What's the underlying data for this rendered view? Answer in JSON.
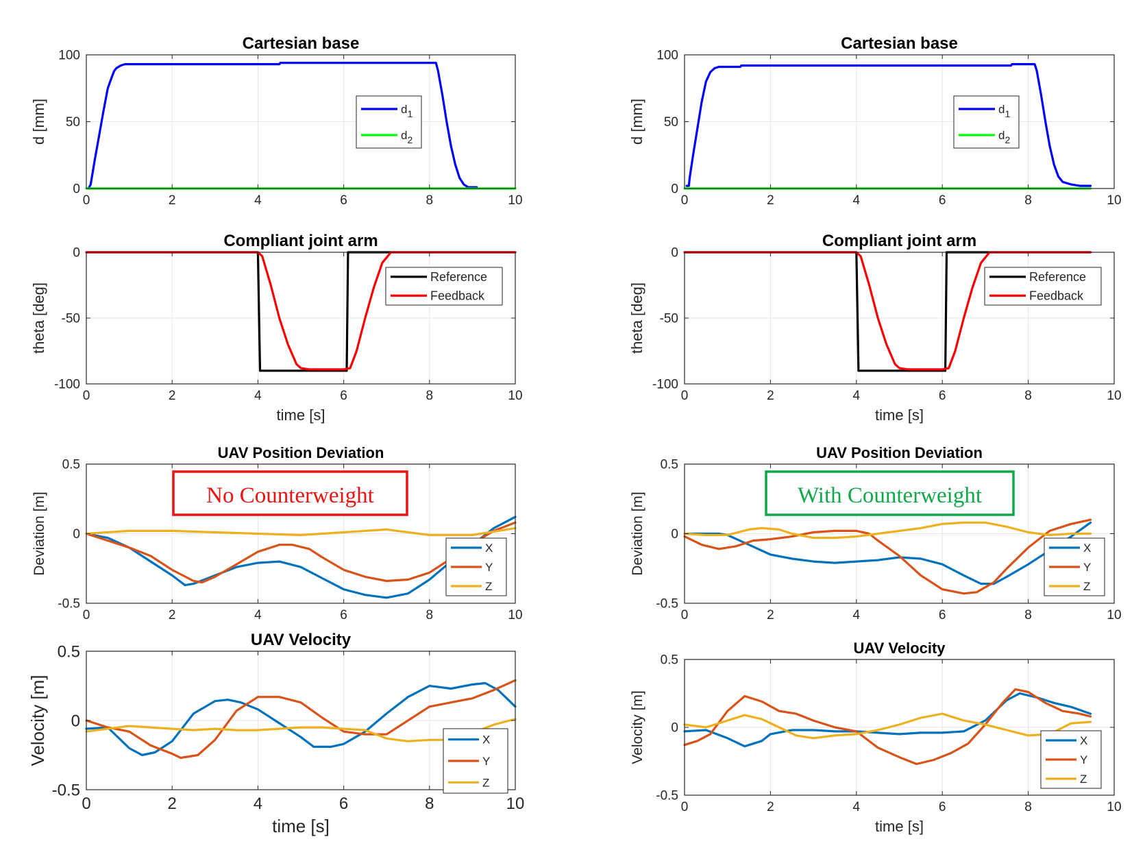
{
  "colors": {
    "blue": "#0000ff",
    "green": "#00ff00",
    "black": "#000000",
    "red": "#ff0000",
    "c1": "#0072bd",
    "c2": "#d95319",
    "c3": "#edb120",
    "grid": "#e6e6e6",
    "anno_red": "#ee1111",
    "anno_green": "#11a84a"
  },
  "annotations": {
    "no_counterweight": "No Counterweight",
    "with_counterweight": "With Counterweight"
  },
  "chart_data": [
    {
      "type": "line",
      "title": "Cartesian base",
      "xlabel": "",
      "ylabel": "d [mm]",
      "xlim": [
        0,
        10
      ],
      "ylim": [
        0,
        100
      ],
      "xticks": [
        0,
        2,
        4,
        6,
        8,
        10
      ],
      "yticks": [
        0,
        50,
        100
      ],
      "grid": true,
      "legend": "right",
      "series": [
        {
          "name": "d",
          "sub": "1",
          "color": "blue",
          "x": [
            0.05,
            0.1,
            0.2,
            0.3,
            0.4,
            0.5,
            0.6,
            0.65,
            0.7,
            0.8,
            0.9,
            1.0,
            2.0,
            3.0,
            4.0,
            4.5,
            4.52,
            6.0,
            7.0,
            8.0,
            8.15,
            8.2,
            8.3,
            8.4,
            8.5,
            8.6,
            8.7,
            8.8,
            8.9,
            9.0,
            9.1
          ],
          "y": [
            0,
            3,
            22,
            40,
            58,
            75,
            84,
            88,
            90,
            92,
            93,
            93,
            93,
            93,
            93,
            93,
            94,
            94,
            94,
            94,
            94,
            88,
            70,
            50,
            32,
            18,
            8,
            3,
            1,
            1,
            1
          ]
        },
        {
          "name": "d",
          "sub": "2",
          "color": "green",
          "x": [
            0,
            10
          ],
          "y": [
            0,
            0
          ]
        }
      ]
    },
    {
      "type": "line",
      "title": "Compliant joint arm",
      "xlabel": "time [s]",
      "ylabel": "theta [deg]",
      "xlim": [
        0,
        10
      ],
      "ylim": [
        -100,
        0
      ],
      "xticks": [
        0,
        2,
        4,
        6,
        8,
        10
      ],
      "yticks": [
        -100,
        -50,
        0
      ],
      "grid": true,
      "legend": "right",
      "series": [
        {
          "name": "Reference",
          "color": "black",
          "x": [
            0,
            4.0,
            4.05,
            6.07,
            6.1,
            10
          ],
          "y": [
            0,
            0,
            -90,
            -90,
            0,
            0
          ]
        },
        {
          "name": "Feedback",
          "color": "red",
          "x": [
            0,
            4.0,
            4.1,
            4.3,
            4.5,
            4.7,
            4.9,
            5.0,
            5.2,
            5.5,
            6.0,
            6.15,
            6.3,
            6.5,
            6.7,
            6.9,
            7.1,
            10
          ],
          "y": [
            0,
            0,
            -3,
            -25,
            -50,
            -70,
            -85,
            -88,
            -89,
            -89,
            -89,
            -88,
            -75,
            -50,
            -27,
            -8,
            0,
            0
          ]
        }
      ]
    },
    {
      "type": "line",
      "title": "Cartesian base",
      "xlabel": "",
      "ylabel": "d [mm]",
      "xlim": [
        0,
        10
      ],
      "ylim": [
        0,
        100
      ],
      "xticks": [
        0,
        2,
        4,
        6,
        8,
        10
      ],
      "yticks": [
        0,
        50,
        100
      ],
      "grid": true,
      "legend": "right",
      "series": [
        {
          "name": "d",
          "sub": "1",
          "color": "blue",
          "x": [
            0.05,
            0.1,
            0.12,
            0.2,
            0.3,
            0.4,
            0.5,
            0.6,
            0.7,
            0.8,
            1.0,
            1.3,
            1.32,
            2.0,
            3.0,
            4.0,
            5.0,
            6.0,
            7.0,
            7.6,
            7.62,
            8.15,
            8.2,
            8.3,
            8.4,
            8.5,
            8.6,
            8.7,
            8.8,
            9.0,
            9.2,
            9.4,
            9.45
          ],
          "y": [
            2,
            2,
            8,
            25,
            45,
            65,
            80,
            87,
            90,
            91,
            91,
            91,
            92,
            92,
            92,
            92,
            92,
            92,
            92,
            92,
            93,
            93,
            88,
            70,
            50,
            32,
            18,
            9,
            5,
            3,
            2,
            2,
            2
          ]
        },
        {
          "name": "d",
          "sub": "2",
          "color": "green",
          "x": [
            0,
            9.45
          ],
          "y": [
            0,
            0
          ]
        }
      ]
    },
    {
      "type": "line",
      "title": "Compliant joint arm",
      "xlabel": "time [s]",
      "ylabel": "theta [deg]",
      "xlim": [
        0,
        10
      ],
      "ylim": [
        -100,
        0
      ],
      "xticks": [
        0,
        2,
        4,
        6,
        8,
        10
      ],
      "yticks": [
        -100,
        -50,
        0
      ],
      "grid": true,
      "legend": "right",
      "series": [
        {
          "name": "Reference",
          "color": "black",
          "x": [
            0,
            4.0,
            4.05,
            6.07,
            6.1,
            9.45
          ],
          "y": [
            0,
            0,
            -90,
            -90,
            0,
            0
          ]
        },
        {
          "name": "Feedback",
          "color": "red",
          "x": [
            0,
            4.0,
            4.1,
            4.3,
            4.5,
            4.7,
            4.9,
            5.0,
            5.2,
            5.5,
            6.0,
            6.15,
            6.3,
            6.5,
            6.7,
            6.9,
            7.1,
            9.45
          ],
          "y": [
            0,
            0,
            -3,
            -25,
            -50,
            -70,
            -85,
            -88,
            -89,
            -89,
            -89,
            -88,
            -75,
            -50,
            -27,
            -8,
            0,
            0
          ]
        }
      ]
    },
    {
      "type": "line",
      "title": "UAV Position Deviation",
      "xlabel": "",
      "ylabel": "Deviation [m]",
      "xlim": [
        0,
        10
      ],
      "ylim": [
        -0.5,
        0.5
      ],
      "xticks": [
        0,
        2,
        4,
        6,
        8,
        10
      ],
      "yticks": [
        -0.5,
        0,
        0.5
      ],
      "grid": true,
      "legend": "bottom-right",
      "series": [
        {
          "name": "X",
          "color": "c1",
          "x": [
            0,
            0.5,
            1.0,
            1.5,
            2.0,
            2.3,
            2.5,
            3.0,
            3.5,
            4.0,
            4.5,
            5.0,
            5.5,
            6.0,
            6.5,
            7.0,
            7.5,
            8.0,
            8.5,
            9.0,
            9.5,
            10
          ],
          "y": [
            0,
            -0.03,
            -0.1,
            -0.2,
            -0.3,
            -0.37,
            -0.36,
            -0.3,
            -0.24,
            -0.21,
            -0.2,
            -0.24,
            -0.32,
            -0.4,
            -0.44,
            -0.46,
            -0.43,
            -0.33,
            -0.2,
            -0.08,
            0.04,
            0.12
          ]
        },
        {
          "name": "Y",
          "color": "c2",
          "x": [
            0,
            0.5,
            1.0,
            1.5,
            2.0,
            2.5,
            2.7,
            3.0,
            3.5,
            4.0,
            4.5,
            4.8,
            5.2,
            5.5,
            6.0,
            6.5,
            7.0,
            7.5,
            8.0,
            8.5,
            9.0,
            9.5,
            10
          ],
          "y": [
            0,
            -0.05,
            -0.1,
            -0.16,
            -0.26,
            -0.34,
            -0.35,
            -0.31,
            -0.22,
            -0.13,
            -0.08,
            -0.08,
            -0.11,
            -0.17,
            -0.26,
            -0.31,
            -0.34,
            -0.33,
            -0.28,
            -0.18,
            -0.07,
            0.02,
            0.08
          ]
        },
        {
          "name": "Z",
          "color": "c3",
          "x": [
            0,
            1,
            2,
            3,
            4,
            5,
            6,
            7,
            8,
            9,
            10
          ],
          "y": [
            0,
            0.02,
            0.02,
            0.01,
            0.0,
            -0.01,
            0.01,
            0.03,
            -0.01,
            -0.01,
            0.04
          ]
        }
      ]
    },
    {
      "type": "line",
      "title": "UAV Velocity",
      "xlabel": "time [s]",
      "ylabel": "Velocity [m]",
      "xlim": [
        0,
        10
      ],
      "ylim": [
        -0.5,
        0.5
      ],
      "xticks": [
        0,
        2,
        4,
        6,
        8,
        10
      ],
      "yticks": [
        -0.5,
        0,
        0.5
      ],
      "grid": true,
      "legend": "bottom-right",
      "series": [
        {
          "name": "X",
          "color": "c1",
          "x": [
            0,
            0.5,
            1.0,
            1.3,
            1.6,
            2.0,
            2.5,
            3.0,
            3.3,
            3.6,
            4.0,
            4.5,
            5.0,
            5.3,
            5.7,
            6.0,
            6.5,
            7.0,
            7.5,
            8.0,
            8.5,
            9.0,
            9.3,
            9.6,
            10
          ],
          "y": [
            -0.06,
            -0.05,
            -0.2,
            -0.25,
            -0.23,
            -0.15,
            0.05,
            0.14,
            0.15,
            0.13,
            0.08,
            -0.02,
            -0.12,
            -0.19,
            -0.19,
            -0.17,
            -0.08,
            0.05,
            0.17,
            0.25,
            0.23,
            0.26,
            0.27,
            0.22,
            0.1
          ]
        },
        {
          "name": "Y",
          "color": "c2",
          "x": [
            0,
            0.5,
            1.0,
            1.5,
            2.0,
            2.2,
            2.6,
            3.0,
            3.5,
            4.0,
            4.5,
            5.0,
            5.5,
            6.0,
            6.5,
            7.0,
            7.5,
            8.0,
            8.5,
            9.0,
            9.5,
            10
          ],
          "y": [
            0.0,
            -0.05,
            -0.08,
            -0.18,
            -0.24,
            -0.27,
            -0.25,
            -0.14,
            0.07,
            0.17,
            0.17,
            0.13,
            0.02,
            -0.08,
            -0.1,
            -0.1,
            0.0,
            0.1,
            0.13,
            0.16,
            0.22,
            0.29
          ]
        },
        {
          "name": "Z",
          "color": "c3",
          "x": [
            0,
            0.5,
            1,
            1.5,
            2,
            2.5,
            3,
            3.5,
            4,
            4.5,
            5,
            5.5,
            6,
            6.5,
            7,
            7.5,
            8,
            8.5,
            9,
            9.5,
            10
          ],
          "y": [
            -0.08,
            -0.06,
            -0.04,
            -0.05,
            -0.06,
            -0.07,
            -0.06,
            -0.07,
            -0.07,
            -0.06,
            -0.05,
            -0.05,
            -0.06,
            -0.07,
            -0.13,
            -0.15,
            -0.14,
            -0.14,
            -0.09,
            -0.03,
            0.01
          ]
        }
      ]
    },
    {
      "type": "line",
      "title": "UAV Position Deviation",
      "xlabel": "",
      "ylabel": "Deviation [m]",
      "xlim": [
        0,
        10
      ],
      "ylim": [
        -0.5,
        0.5
      ],
      "xticks": [
        0,
        2,
        4,
        6,
        8,
        10
      ],
      "yticks": [
        -0.5,
        0,
        0.5
      ],
      "grid": true,
      "legend": "bottom-right",
      "series": [
        {
          "name": "X",
          "color": "c1",
          "x": [
            0,
            0.5,
            0.8,
            1.0,
            1.5,
            2.0,
            2.5,
            3.0,
            3.5,
            4.0,
            4.5,
            5.0,
            5.5,
            6.0,
            6.5,
            6.9,
            7.2,
            7.5,
            8.0,
            8.5,
            9.0,
            9.45
          ],
          "y": [
            0,
            0.0,
            0.0,
            -0.01,
            -0.08,
            -0.15,
            -0.18,
            -0.2,
            -0.21,
            -0.2,
            -0.19,
            -0.17,
            -0.18,
            -0.22,
            -0.3,
            -0.36,
            -0.36,
            -0.31,
            -0.22,
            -0.12,
            -0.02,
            0.08
          ]
        },
        {
          "name": "Y",
          "color": "c2",
          "x": [
            0,
            0.4,
            0.8,
            1.2,
            1.6,
            2.0,
            2.5,
            3.0,
            3.5,
            4.0,
            4.3,
            4.5,
            5.0,
            5.5,
            6.0,
            6.5,
            6.8,
            7.2,
            7.5,
            8.0,
            8.5,
            9.0,
            9.45
          ],
          "y": [
            -0.02,
            -0.08,
            -0.11,
            -0.09,
            -0.05,
            -0.04,
            -0.02,
            0.01,
            0.02,
            0.02,
            0.0,
            -0.05,
            -0.16,
            -0.3,
            -0.4,
            -0.43,
            -0.42,
            -0.35,
            -0.25,
            -0.1,
            0.02,
            0.07,
            0.1
          ]
        },
        {
          "name": "Z",
          "color": "c3",
          "x": [
            0,
            0.5,
            1.0,
            1.5,
            1.8,
            2.2,
            2.5,
            3.0,
            3.5,
            4.0,
            4.5,
            5.0,
            5.5,
            6.0,
            6.5,
            7.0,
            7.5,
            8.0,
            8.5,
            9.0,
            9.45
          ],
          "y": [
            0,
            -0.01,
            -0.01,
            0.03,
            0.04,
            0.03,
            0.0,
            -0.03,
            -0.03,
            -0.02,
            0.0,
            0.02,
            0.04,
            0.07,
            0.08,
            0.08,
            0.05,
            0.01,
            -0.01,
            0.0,
            0.0
          ]
        }
      ]
    },
    {
      "type": "line",
      "title": "UAV Velocity",
      "xlabel": "time [s]",
      "ylabel": "Velocity [m]",
      "xlim": [
        0,
        10
      ],
      "ylim": [
        -0.5,
        0.5
      ],
      "xticks": [
        0,
        2,
        4,
        6,
        8,
        10
      ],
      "yticks": [
        -0.5,
        0,
        0.5
      ],
      "grid": true,
      "legend": "bottom-right",
      "series": [
        {
          "name": "X",
          "color": "c1",
          "x": [
            0,
            0.5,
            1.0,
            1.4,
            1.8,
            2.0,
            2.5,
            3.0,
            3.5,
            4.0,
            4.5,
            5.0,
            5.5,
            6.0,
            6.5,
            7.0,
            7.5,
            7.8,
            8.2,
            8.6,
            9.0,
            9.45
          ],
          "y": [
            -0.03,
            -0.02,
            -0.08,
            -0.14,
            -0.1,
            -0.05,
            -0.02,
            -0.02,
            -0.03,
            -0.03,
            -0.04,
            -0.05,
            -0.04,
            -0.04,
            -0.03,
            0.05,
            0.2,
            0.25,
            0.22,
            0.18,
            0.15,
            0.1
          ]
        },
        {
          "name": "Y",
          "color": "c2",
          "x": [
            0,
            0.3,
            0.6,
            1.0,
            1.4,
            1.8,
            2.2,
            2.6,
            3.0,
            3.5,
            4.0,
            4.5,
            5.0,
            5.4,
            5.8,
            6.2,
            6.6,
            7.0,
            7.4,
            7.7,
            8.0,
            8.4,
            8.8,
            9.2,
            9.45
          ],
          "y": [
            -0.13,
            -0.1,
            -0.05,
            0.12,
            0.23,
            0.19,
            0.12,
            0.1,
            0.05,
            0.0,
            -0.03,
            -0.15,
            -0.22,
            -0.27,
            -0.24,
            -0.19,
            -0.12,
            0.02,
            0.18,
            0.28,
            0.26,
            0.18,
            0.12,
            0.1,
            0.08
          ]
        },
        {
          "name": "Z",
          "color": "c3",
          "x": [
            0,
            0.5,
            1.0,
            1.4,
            1.8,
            2.2,
            2.6,
            3.0,
            3.5,
            4.0,
            4.5,
            5.0,
            5.5,
            6.0,
            6.5,
            7.0,
            7.5,
            8.0,
            8.5,
            9.0,
            9.45
          ],
          "y": [
            0.02,
            0.0,
            0.05,
            0.09,
            0.06,
            0.0,
            -0.06,
            -0.08,
            -0.06,
            -0.05,
            -0.02,
            0.02,
            0.07,
            0.1,
            0.05,
            0.02,
            -0.02,
            -0.06,
            -0.05,
            0.03,
            0.04
          ]
        }
      ]
    }
  ]
}
